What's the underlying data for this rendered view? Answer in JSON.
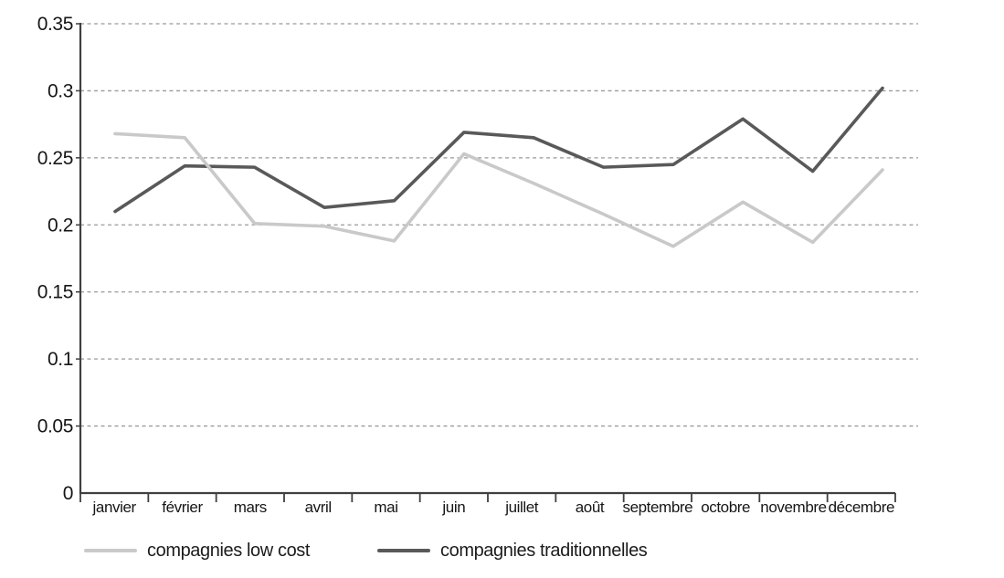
{
  "chart_data": {
    "type": "line",
    "title": "",
    "xlabel": "",
    "ylabel": "",
    "categories": [
      "janvier",
      "février",
      "mars",
      "avril",
      "mai",
      "juin",
      "juillet",
      "août",
      "septembre",
      "octobre",
      "novembre",
      "décembre"
    ],
    "series": [
      {
        "name": "compagnies low cost",
        "color": "#c9c9ca",
        "values": [
          0.268,
          0.265,
          0.201,
          0.199,
          0.188,
          0.253,
          0.231,
          0.208,
          0.184,
          0.217,
          0.187,
          0.241
        ]
      },
      {
        "name": "compagnies traditionnelles",
        "color": "#58595b",
        "values": [
          0.21,
          0.244,
          0.243,
          0.213,
          0.218,
          0.269,
          0.265,
          0.243,
          0.245,
          0.279,
          0.24,
          0.302
        ]
      }
    ],
    "ylim": [
      0,
      0.35
    ],
    "yticks": [
      0,
      0.05,
      0.1,
      0.15,
      0.2,
      0.25,
      0.3,
      0.35
    ],
    "ytick_labels": [
      "0",
      "0.05",
      "0.1",
      "0.15",
      "0.2",
      "0.25",
      "0.3",
      "0.35"
    ],
    "grid": "horizontal-dashed",
    "legend_position": "bottom-left"
  },
  "style": {
    "grid_color": "#9a9a9a",
    "axis_color": "#3f3f3f",
    "text_color": "#161616",
    "background": "#ffffff"
  }
}
